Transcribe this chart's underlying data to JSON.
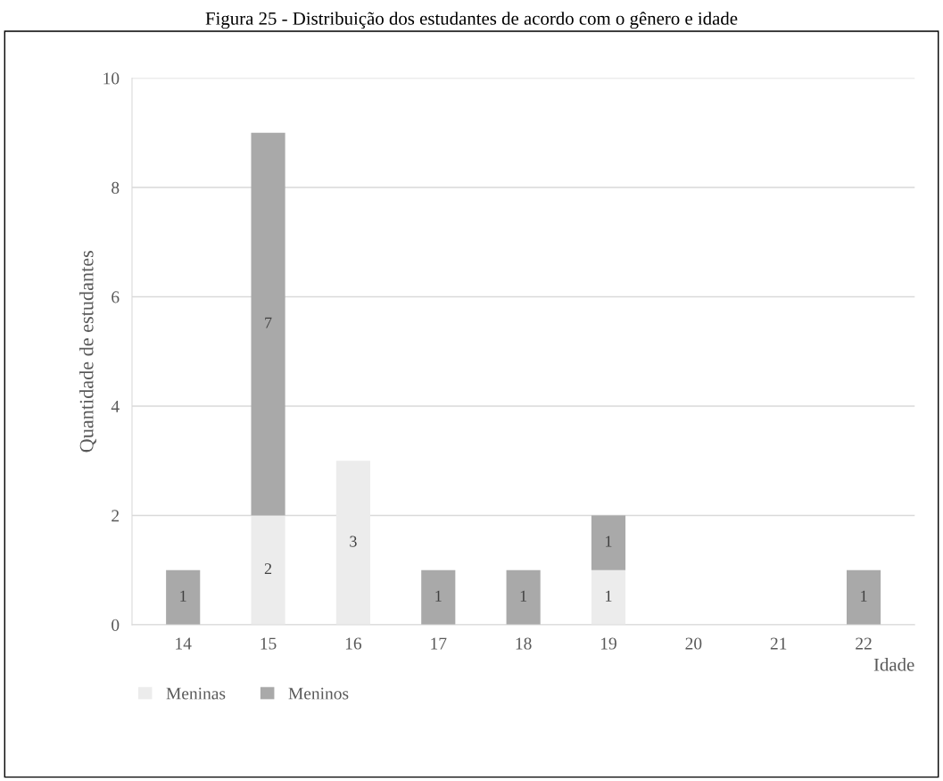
{
  "chart_data": {
    "type": "bar",
    "stacked": true,
    "title": "Figura 25 - Distribuição dos estudantes de acordo com o gênero e idade",
    "xlabel": "Idade",
    "ylabel": "Quantidade de estudantes",
    "categories": [
      "14",
      "15",
      "16",
      "17",
      "18",
      "19",
      "20",
      "21",
      "22"
    ],
    "series": [
      {
        "name": "Meninas",
        "color": "#ececec",
        "values": [
          0,
          2,
          3,
          0,
          0,
          1,
          0,
          0,
          0
        ],
        "value_labels": [
          null,
          "2",
          "3",
          null,
          null,
          "1",
          null,
          null,
          null
        ]
      },
      {
        "name": "Meninos",
        "color": "#a9a9a9",
        "values": [
          1,
          7,
          0,
          1,
          1,
          1,
          0,
          0,
          1
        ],
        "value_labels": [
          "1",
          "7",
          null,
          "1",
          "1",
          "1",
          null,
          null,
          "1"
        ]
      }
    ],
    "ylim": [
      0,
      10
    ],
    "yticks": [
      0,
      2,
      4,
      6,
      8,
      10
    ],
    "grid": "y",
    "legend": "bottom left"
  }
}
